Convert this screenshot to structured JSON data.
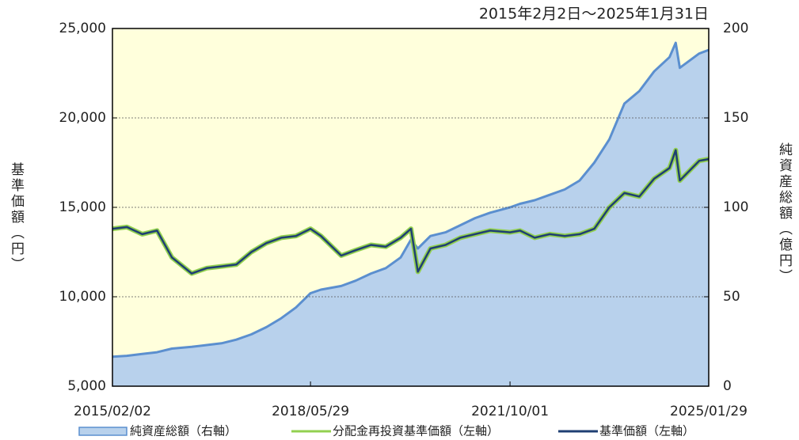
{
  "chart_data": {
    "type": "line",
    "subtitle": "2015年2月2日～2025年1月31日",
    "ylabel": "基準価額（円）",
    "y2label": "純資産総額（億円）",
    "x": [
      "2015/02/02",
      "2015/05/01",
      "2015/08/03",
      "2015/11/02",
      "2016/02/01",
      "2016/06/01",
      "2016/09/01",
      "2016/12/01",
      "2017/03/01",
      "2017/06/01",
      "2017/09/01",
      "2017/12/01",
      "2018/03/01",
      "2018/05/29",
      "2018/08/01",
      "2018/12/03",
      "2019/03/01",
      "2019/06/03",
      "2019/09/02",
      "2019/12/02",
      "2020/02/03",
      "2020/03/16",
      "2020/06/01",
      "2020/09/01",
      "2020/12/01",
      "2021/03/01",
      "2021/06/01",
      "2021/10/01",
      "2021/12/01",
      "2022/03/01",
      "2022/06/01",
      "2022/09/01",
      "2022/12/01",
      "2023/03/01",
      "2023/06/01",
      "2023/09/01",
      "2023/12/01",
      "2024/03/01",
      "2024/06/03",
      "2024/07/11",
      "2024/08/05",
      "2024/12/02",
      "2025/01/29"
    ],
    "xlim": [
      "2015/02/02",
      "2025/01/29"
    ],
    "xticks": [
      "2015/02/02",
      "2018/05/29",
      "2021/10/01",
      "2025/01/29"
    ],
    "ylim": [
      5000,
      25000
    ],
    "yticks": [
      {
        "value": 5000,
        "label": "5,000"
      },
      {
        "value": 10000,
        "label": "10,000"
      },
      {
        "value": 15000,
        "label": "15,000"
      },
      {
        "value": 20000,
        "label": "20,000"
      },
      {
        "value": 25000,
        "label": "25,000"
      }
    ],
    "y2lim": [
      0,
      200
    ],
    "y2ticks": [
      0,
      50,
      100,
      150,
      200
    ],
    "grid": true,
    "plot_background": "#ffffdc",
    "series": [
      {
        "name": "純資産総額（右軸）",
        "kind": "area",
        "axis": "y2",
        "color": "#b8d1ec",
        "edge_color": "#5b8fcf",
        "values": [
          16.5,
          17,
          18,
          19,
          21,
          22,
          23,
          24,
          26,
          29,
          33,
          38,
          44,
          52,
          54,
          56,
          59,
          63,
          66,
          72,
          82,
          77,
          84,
          86,
          90,
          94,
          97,
          100,
          102,
          104,
          107,
          110,
          115,
          125,
          138,
          158,
          165,
          176,
          184,
          192,
          178,
          186,
          188
        ]
      },
      {
        "name": "分配金再投資基準価額（左軸）",
        "kind": "line",
        "color": "#92d050",
        "values": [
          13800,
          13900,
          13500,
          13700,
          12200,
          11300,
          11600,
          11700,
          11800,
          12500,
          13000,
          13300,
          13400,
          13800,
          13400,
          12300,
          12600,
          12900,
          12800,
          13300,
          13800,
          11400,
          12700,
          12900,
          13300,
          13500,
          13700,
          13600,
          13700,
          13300,
          13500,
          13400,
          13500,
          13800,
          15000,
          15800,
          15600,
          16600,
          17200,
          18200,
          16500,
          17600,
          17700
        ]
      },
      {
        "name": "基準価額（左軸）",
        "kind": "line",
        "color": "#1f3f73",
        "values": [
          13800,
          13900,
          13500,
          13700,
          12200,
          11300,
          11600,
          11700,
          11800,
          12500,
          13000,
          13300,
          13400,
          13800,
          13400,
          12300,
          12600,
          12900,
          12800,
          13300,
          13800,
          11400,
          12700,
          12900,
          13300,
          13500,
          13700,
          13600,
          13700,
          13300,
          13500,
          13400,
          13500,
          13800,
          15000,
          15800,
          15600,
          16600,
          17200,
          18200,
          16500,
          17600,
          17700
        ]
      }
    ]
  }
}
